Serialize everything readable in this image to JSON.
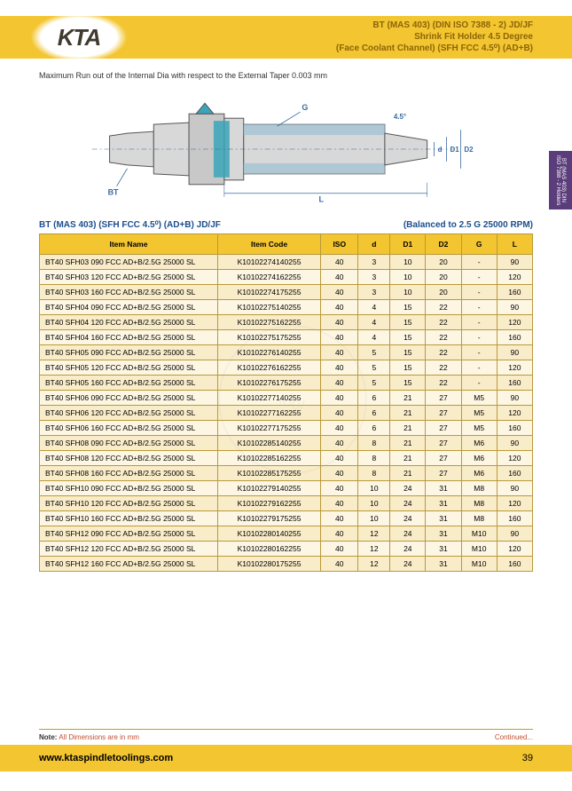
{
  "header": {
    "line1": "BT (MAS 403) (DIN ISO 7388 - 2) JD/JF",
    "line2": "Shrink Fit Holder 4.5 Degree",
    "line3": "(Face Coolant Channel) (SFH FCC 4.5⁰) (AD+B)"
  },
  "logo": "KTA",
  "runout": "Maximum Run out of the Internal Dia with respect to the External Taper 0.003 mm",
  "diagram": {
    "labels": {
      "bt": "BT",
      "g": "G",
      "d": "d",
      "d1": "D1",
      "d2": "D2",
      "angle": "4.5°",
      "l": "L"
    },
    "colors": {
      "body": "#d8d8d8",
      "body_stroke": "#888",
      "coolant": "#3aa5b8",
      "section_fill": "#9cc2d6",
      "dim": "#3a6aa0"
    }
  },
  "table_title": "BT (MAS 403) (SFH FCC 4.5⁰) (AD+B) JD/JF",
  "balanced": "(Balanced to 2.5 G 25000 RPM)",
  "columns": [
    "Item Name",
    "Item Code",
    "ISO",
    "d",
    "D1",
    "D2",
    "G",
    "L"
  ],
  "col_widths": [
    "180px",
    "104px",
    "38px",
    "32px",
    "36px",
    "36px",
    "36px",
    "36px"
  ],
  "rows": [
    [
      "BT40 SFH03 090 FCC AD+B/2.5G 25000 SL",
      "K10102274140255",
      "40",
      "3",
      "10",
      "20",
      "-",
      "90"
    ],
    [
      "BT40 SFH03 120 FCC AD+B/2.5G 25000 SL",
      "K10102274162255",
      "40",
      "3",
      "10",
      "20",
      "-",
      "120"
    ],
    [
      "BT40 SFH03 160 FCC AD+B/2.5G 25000 SL",
      "K10102274175255",
      "40",
      "3",
      "10",
      "20",
      "-",
      "160"
    ],
    [
      "BT40 SFH04 090 FCC AD+B/2.5G 25000 SL",
      "K10102275140255",
      "40",
      "4",
      "15",
      "22",
      "-",
      "90"
    ],
    [
      "BT40 SFH04 120 FCC AD+B/2.5G 25000 SL",
      "K10102275162255",
      "40",
      "4",
      "15",
      "22",
      "-",
      "120"
    ],
    [
      "BT40 SFH04 160 FCC AD+B/2.5G 25000 SL",
      "K10102275175255",
      "40",
      "4",
      "15",
      "22",
      "-",
      "160"
    ],
    [
      "BT40 SFH05 090 FCC AD+B/2.5G 25000 SL",
      "K10102276140255",
      "40",
      "5",
      "15",
      "22",
      "-",
      "90"
    ],
    [
      "BT40 SFH05 120 FCC AD+B/2.5G 25000 SL",
      "K10102276162255",
      "40",
      "5",
      "15",
      "22",
      "-",
      "120"
    ],
    [
      "BT40 SFH05 160 FCC AD+B/2.5G 25000 SL",
      "K10102276175255",
      "40",
      "5",
      "15",
      "22",
      "-",
      "160"
    ],
    [
      "BT40 SFH06 090 FCC AD+B/2.5G 25000 SL",
      "K10102277140255",
      "40",
      "6",
      "21",
      "27",
      "M5",
      "90"
    ],
    [
      "BT40 SFH06 120 FCC AD+B/2.5G 25000 SL",
      "K10102277162255",
      "40",
      "6",
      "21",
      "27",
      "M5",
      "120"
    ],
    [
      "BT40 SFH06 160 FCC AD+B/2.5G 25000 SL",
      "K10102277175255",
      "40",
      "6",
      "21",
      "27",
      "M5",
      "160"
    ],
    [
      "BT40 SFH08 090 FCC AD+B/2.5G 25000 SL",
      "K10102285140255",
      "40",
      "8",
      "21",
      "27",
      "M6",
      "90"
    ],
    [
      "BT40 SFH08 120 FCC AD+B/2.5G 25000 SL",
      "K10102285162255",
      "40",
      "8",
      "21",
      "27",
      "M6",
      "120"
    ],
    [
      "BT40 SFH08 160 FCC AD+B/2.5G 25000 SL",
      "K10102285175255",
      "40",
      "8",
      "21",
      "27",
      "M6",
      "160"
    ],
    [
      "BT40 SFH10 090 FCC AD+B/2.5G 25000 SL",
      "K10102279140255",
      "40",
      "10",
      "24",
      "31",
      "M8",
      "90"
    ],
    [
      "BT40 SFH10 120 FCC AD+B/2.5G 25000 SL",
      "K10102279162255",
      "40",
      "10",
      "24",
      "31",
      "M8",
      "120"
    ],
    [
      "BT40 SFH10 160 FCC AD+B/2.5G 25000 SL",
      "K10102279175255",
      "40",
      "10",
      "24",
      "31",
      "M8",
      "160"
    ],
    [
      "BT40 SFH12 090 FCC AD+B/2.5G 25000 SL",
      "K10102280140255",
      "40",
      "12",
      "24",
      "31",
      "M10",
      "90"
    ],
    [
      "BT40 SFH12 120 FCC AD+B/2.5G 25000 SL",
      "K10102280162255",
      "40",
      "12",
      "24",
      "31",
      "M10",
      "120"
    ],
    [
      "BT40 SFH12 160 FCC AD+B/2.5G 25000 SL",
      "K10102280175255",
      "40",
      "12",
      "24",
      "31",
      "M10",
      "160"
    ]
  ],
  "side_tab": "BT (MAS 403) DIN ISO 7388 - 2 Holders",
  "footer": {
    "note_label": "Note:",
    "note_text": " All Dimensions are in mm",
    "continued": "Continued...",
    "url": "www.ktaspindletoolings.com",
    "page": "39"
  }
}
